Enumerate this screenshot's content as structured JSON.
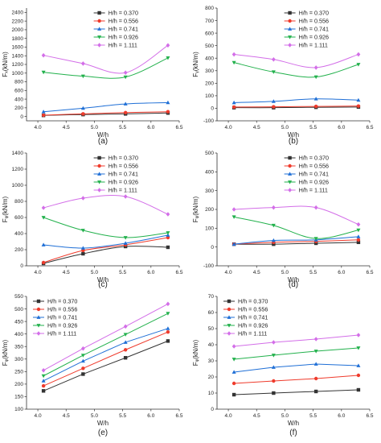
{
  "chart_data": [
    {
      "type": "line",
      "panel_label": "(a)",
      "xlabel": "W/h",
      "ylabel": "Fₓ(kN/m)",
      "xlim": [
        3.8,
        6.5
      ],
      "ylim": [
        -100,
        2500
      ],
      "xticks": [
        "4.0",
        "4.5",
        "5.0",
        "5.5",
        "6.0",
        "6.5"
      ],
      "yticks": [
        "0",
        "200",
        "400",
        "600",
        "800",
        "1000",
        "1200",
        "1400",
        "1600",
        "1800",
        "2000",
        "2200",
        "2400"
      ],
      "legend_position": "top-right",
      "smooth": true,
      "x": [
        4.1,
        4.8,
        5.55,
        6.3
      ],
      "series": [
        {
          "name": "H/h = 0.370",
          "values": [
            25,
            45,
            60,
            80
          ]
        },
        {
          "name": "H/h = 0.556",
          "values": [
            30,
            60,
            90,
            110
          ]
        },
        {
          "name": "H/h = 0.741",
          "values": [
            110,
            190,
            290,
            320
          ]
        },
        {
          "name": "H/h = 0.926",
          "values": [
            1020,
            930,
            910,
            1350
          ]
        },
        {
          "name": "H/h = 1.111",
          "values": [
            1410,
            1220,
            1010,
            1640
          ]
        }
      ]
    },
    {
      "type": "line",
      "panel_label": "(b)",
      "xlabel": "W/h",
      "ylabel": "Fᵧ(kN/m)",
      "xlim": [
        3.8,
        6.5
      ],
      "ylim": [
        -100,
        800
      ],
      "xticks": [
        "4.0",
        "4.5",
        "5.0",
        "5.5",
        "6.0",
        "6.5"
      ],
      "yticks": [
        "-100",
        "0",
        "100",
        "200",
        "300",
        "400",
        "500",
        "600",
        "700",
        "800"
      ],
      "legend_position": "top-right",
      "smooth": true,
      "x": [
        4.1,
        4.8,
        5.55,
        6.3
      ],
      "series": [
        {
          "name": "H/h = 0.370",
          "values": [
            5,
            5,
            8,
            10
          ]
        },
        {
          "name": "H/h = 0.556",
          "values": [
            10,
            12,
            15,
            18
          ]
        },
        {
          "name": "H/h = 0.741",
          "values": [
            45,
            55,
            75,
            65
          ]
        },
        {
          "name": "H/h = 0.926",
          "values": [
            365,
            290,
            250,
            350
          ]
        },
        {
          "name": "H/h = 1.111",
          "values": [
            430,
            390,
            325,
            430
          ]
        }
      ]
    },
    {
      "type": "line",
      "panel_label": "(c)",
      "xlabel": "W/h",
      "ylabel": "Fᵩ(kN/m)",
      "xlim": [
        3.8,
        6.5
      ],
      "ylim": [
        0,
        1400
      ],
      "xticks": [
        "4.0",
        "4.5",
        "5.0",
        "5.5",
        "6.0",
        "6.5"
      ],
      "yticks": [
        "0",
        "200",
        "400",
        "600",
        "800",
        "1000",
        "1200",
        "1400"
      ],
      "legend_position": "top-right",
      "smooth": true,
      "x": [
        4.1,
        4.8,
        5.55,
        6.3
      ],
      "series": [
        {
          "name": "H/h = 0.370",
          "values": [
            30,
            150,
            240,
            230
          ]
        },
        {
          "name": "H/h = 0.556",
          "values": [
            40,
            190,
            260,
            350
          ]
        },
        {
          "name": "H/h = 0.741",
          "values": [
            260,
            220,
            280,
            380
          ]
        },
        {
          "name": "H/h = 0.926",
          "values": [
            600,
            440,
            350,
            410
          ]
        },
        {
          "name": "H/h = 1.111",
          "values": [
            720,
            840,
            860,
            640
          ]
        }
      ]
    },
    {
      "type": "line",
      "panel_label": "(d)",
      "xlabel": "W/h",
      "ylabel": "Fᵩ(kN/m)",
      "xlim": [
        3.8,
        6.5
      ],
      "ylim": [
        -100,
        500
      ],
      "xticks": [
        "4.0",
        "4.5",
        "5.0",
        "5.5",
        "6.0",
        "6.5"
      ],
      "yticks": [
        "-100",
        "0",
        "100",
        "200",
        "300",
        "400",
        "500"
      ],
      "legend_position": "top-right",
      "smooth": true,
      "x": [
        4.1,
        4.8,
        5.55,
        6.3
      ],
      "series": [
        {
          "name": "H/h = 0.370",
          "values": [
            15,
            15,
            20,
            25
          ]
        },
        {
          "name": "H/h = 0.556",
          "values": [
            15,
            25,
            30,
            38
          ]
        },
        {
          "name": "H/h = 0.741",
          "values": [
            15,
            35,
            38,
            55
          ]
        },
        {
          "name": "H/h = 0.926",
          "values": [
            160,
            115,
            45,
            90
          ]
        },
        {
          "name": "H/h = 1.111",
          "values": [
            200,
            210,
            210,
            120
          ]
        }
      ]
    },
    {
      "type": "line",
      "panel_label": "(e)",
      "xlabel": "W/h",
      "ylabel": "Fᵩ(kN/m)",
      "xlim": [
        3.8,
        6.5
      ],
      "ylim": [
        100,
        550
      ],
      "xticks": [
        "4.0",
        "4.5",
        "5.0",
        "5.5",
        "6.0",
        "6.5"
      ],
      "yticks": [
        "100",
        "150",
        "200",
        "250",
        "300",
        "350",
        "400",
        "450",
        "500",
        "550"
      ],
      "legend_position": "top-left",
      "smooth": false,
      "x": [
        4.1,
        4.8,
        5.55,
        6.3
      ],
      "series": [
        {
          "name": "H/h = 0.370",
          "values": [
            173,
            240,
            305,
            372
          ]
        },
        {
          "name": "H/h = 0.556",
          "values": [
            193,
            263,
            337,
            408
          ]
        },
        {
          "name": "H/h = 0.741",
          "values": [
            213,
            292,
            367,
            422
          ]
        },
        {
          "name": "H/h = 0.926",
          "values": [
            233,
            315,
            398,
            482
          ]
        },
        {
          "name": "H/h = 1.111",
          "values": [
            255,
            342,
            430,
            520
          ]
        }
      ]
    },
    {
      "type": "line",
      "panel_label": "(f)",
      "xlabel": "W/h",
      "ylabel": "Fᵩ(kN/m)",
      "xlim": [
        3.8,
        6.5
      ],
      "ylim": [
        0,
        70
      ],
      "xticks": [
        "4.0",
        "4.5",
        "5.0",
        "5.5",
        "6.0",
        "6.5"
      ],
      "yticks": [
        "0",
        "10",
        "20",
        "30",
        "40",
        "50",
        "60",
        "70"
      ],
      "legend_position": "top-left",
      "smooth": false,
      "x": [
        4.1,
        4.8,
        5.55,
        6.3
      ],
      "series": [
        {
          "name": "H/h = 0.370",
          "values": [
            9,
            10,
            11,
            12
          ]
        },
        {
          "name": "H/h = 0.556",
          "values": [
            16,
            17.5,
            19,
            21
          ]
        },
        {
          "name": "H/h = 0.741",
          "values": [
            23,
            26,
            28,
            27
          ]
        },
        {
          "name": "H/h = 0.926",
          "values": [
            31,
            33.5,
            36,
            38
          ]
        },
        {
          "name": "H/h = 1.111",
          "values": [
            39,
            41.5,
            43.5,
            46
          ]
        }
      ]
    }
  ],
  "series_colors": [
    "#333333",
    "#ef3b2c",
    "#1f6fd6",
    "#22b14c",
    "#d36ee8"
  ],
  "series_markers": [
    "square",
    "circle",
    "triangle-up",
    "triangle-down",
    "diamond"
  ]
}
